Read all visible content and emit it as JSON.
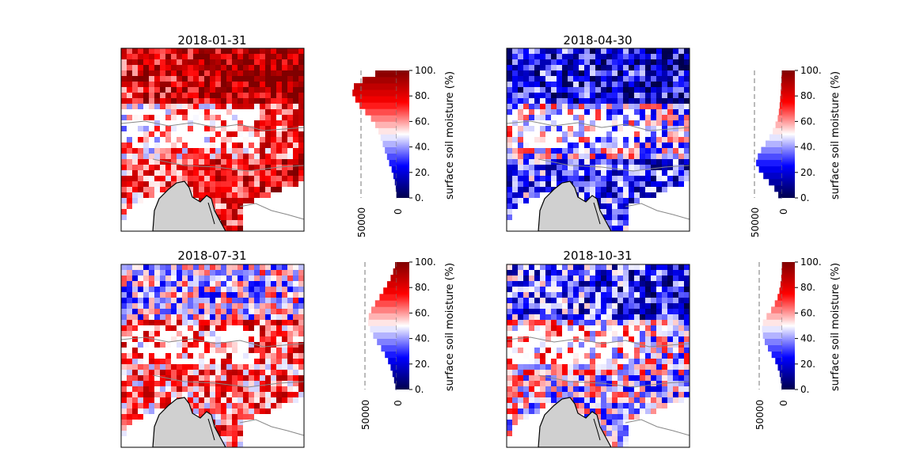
{
  "figure": {
    "colormap": "seismic (blue-white-red)",
    "land_color": "#d0d0d0",
    "border_color": "#888888",
    "coast_color": "#000000"
  },
  "chart_data": [
    {
      "type": "heatmap",
      "title": "2018-01-31",
      "colorbar_label": "surface soil moisture (%)",
      "colorbar_ticks": [
        "0.",
        "20.",
        "40.",
        "60.",
        "80.",
        "100."
      ],
      "clim": [
        0,
        100
      ],
      "histogram": {
        "axis_ticks": [
          "50000",
          "0"
        ],
        "bins_center_percent": [
          2.5,
          7.5,
          12.5,
          17.5,
          22.5,
          27.5,
          32.5,
          37.5,
          42.5,
          47.5,
          52.5,
          57.5,
          62.5,
          67.5,
          72.5,
          77.5,
          82.5,
          87.5,
          92.5,
          97.5
        ],
        "counts": [
          400,
          1200,
          2500,
          4500,
          7000,
          10500,
          13500,
          16500,
          19500,
          22500,
          25500,
          30000,
          36000,
          44000,
          52000,
          58000,
          62000,
          60000,
          48000,
          30000
        ]
      }
    },
    {
      "type": "heatmap",
      "title": "2018-04-30",
      "colorbar_label": "surface soil moisture (%)",
      "colorbar_ticks": [
        "0.",
        "20.",
        "40.",
        "60.",
        "80.",
        "100."
      ],
      "clim": [
        0,
        100
      ],
      "histogram": {
        "axis_ticks": [
          "50000",
          "0"
        ],
        "bins_center_percent": [
          2.5,
          7.5,
          12.5,
          17.5,
          22.5,
          27.5,
          32.5,
          37.5,
          42.5,
          47.5,
          52.5,
          57.5,
          62.5,
          67.5,
          72.5,
          77.5,
          82.5,
          87.5,
          92.5,
          97.5
        ],
        "counts": [
          7000,
          14000,
          24000,
          34000,
          42000,
          47000,
          44000,
          38000,
          30000,
          23000,
          17000,
          12000,
          8000,
          6000,
          4500,
          3500,
          2500,
          2000,
          1500,
          1000
        ]
      }
    },
    {
      "type": "heatmap",
      "title": "2018-07-31",
      "colorbar_label": "surface soil moisture (%)",
      "colorbar_ticks": [
        "0.",
        "20.",
        "40.",
        "60.",
        "80.",
        "100."
      ],
      "clim": [
        0,
        100
      ],
      "histogram": {
        "axis_ticks": [
          "50000",
          "0"
        ],
        "bins_center_percent": [
          2.5,
          7.5,
          12.5,
          17.5,
          22.5,
          27.5,
          32.5,
          37.5,
          42.5,
          47.5,
          52.5,
          57.5,
          62.5,
          67.5,
          72.5,
          77.5,
          82.5,
          87.5,
          92.5,
          97.5
        ],
        "counts": [
          2000,
          4000,
          6500,
          9500,
          13500,
          18500,
          24500,
          31000,
          37000,
          42000,
          45000,
          44000,
          40000,
          34000,
          27000,
          21000,
          15000,
          9500,
          5500,
          2500
        ]
      }
    },
    {
      "type": "heatmap",
      "title": "2018-10-31",
      "colorbar_label": "surface soil moisture (%)",
      "colorbar_ticks": [
        "0.",
        "20.",
        "40.",
        "60.",
        "80.",
        "100."
      ],
      "clim": [
        0,
        100
      ],
      "histogram": {
        "axis_ticks": [
          "50000",
          "0"
        ],
        "bins_center_percent": [
          2.5,
          7.5,
          12.5,
          17.5,
          22.5,
          27.5,
          32.5,
          37.5,
          42.5,
          47.5,
          52.5,
          57.5,
          62.5,
          67.5,
          72.5,
          77.5,
          82.5,
          87.5,
          92.5,
          97.5
        ],
        "counts": [
          1500,
          3000,
          5500,
          9500,
          15000,
          23000,
          31000,
          38000,
          42000,
          44000,
          42000,
          34000,
          24000,
          16000,
          10000,
          6000,
          3500,
          2000,
          1200,
          600
        ]
      }
    }
  ]
}
